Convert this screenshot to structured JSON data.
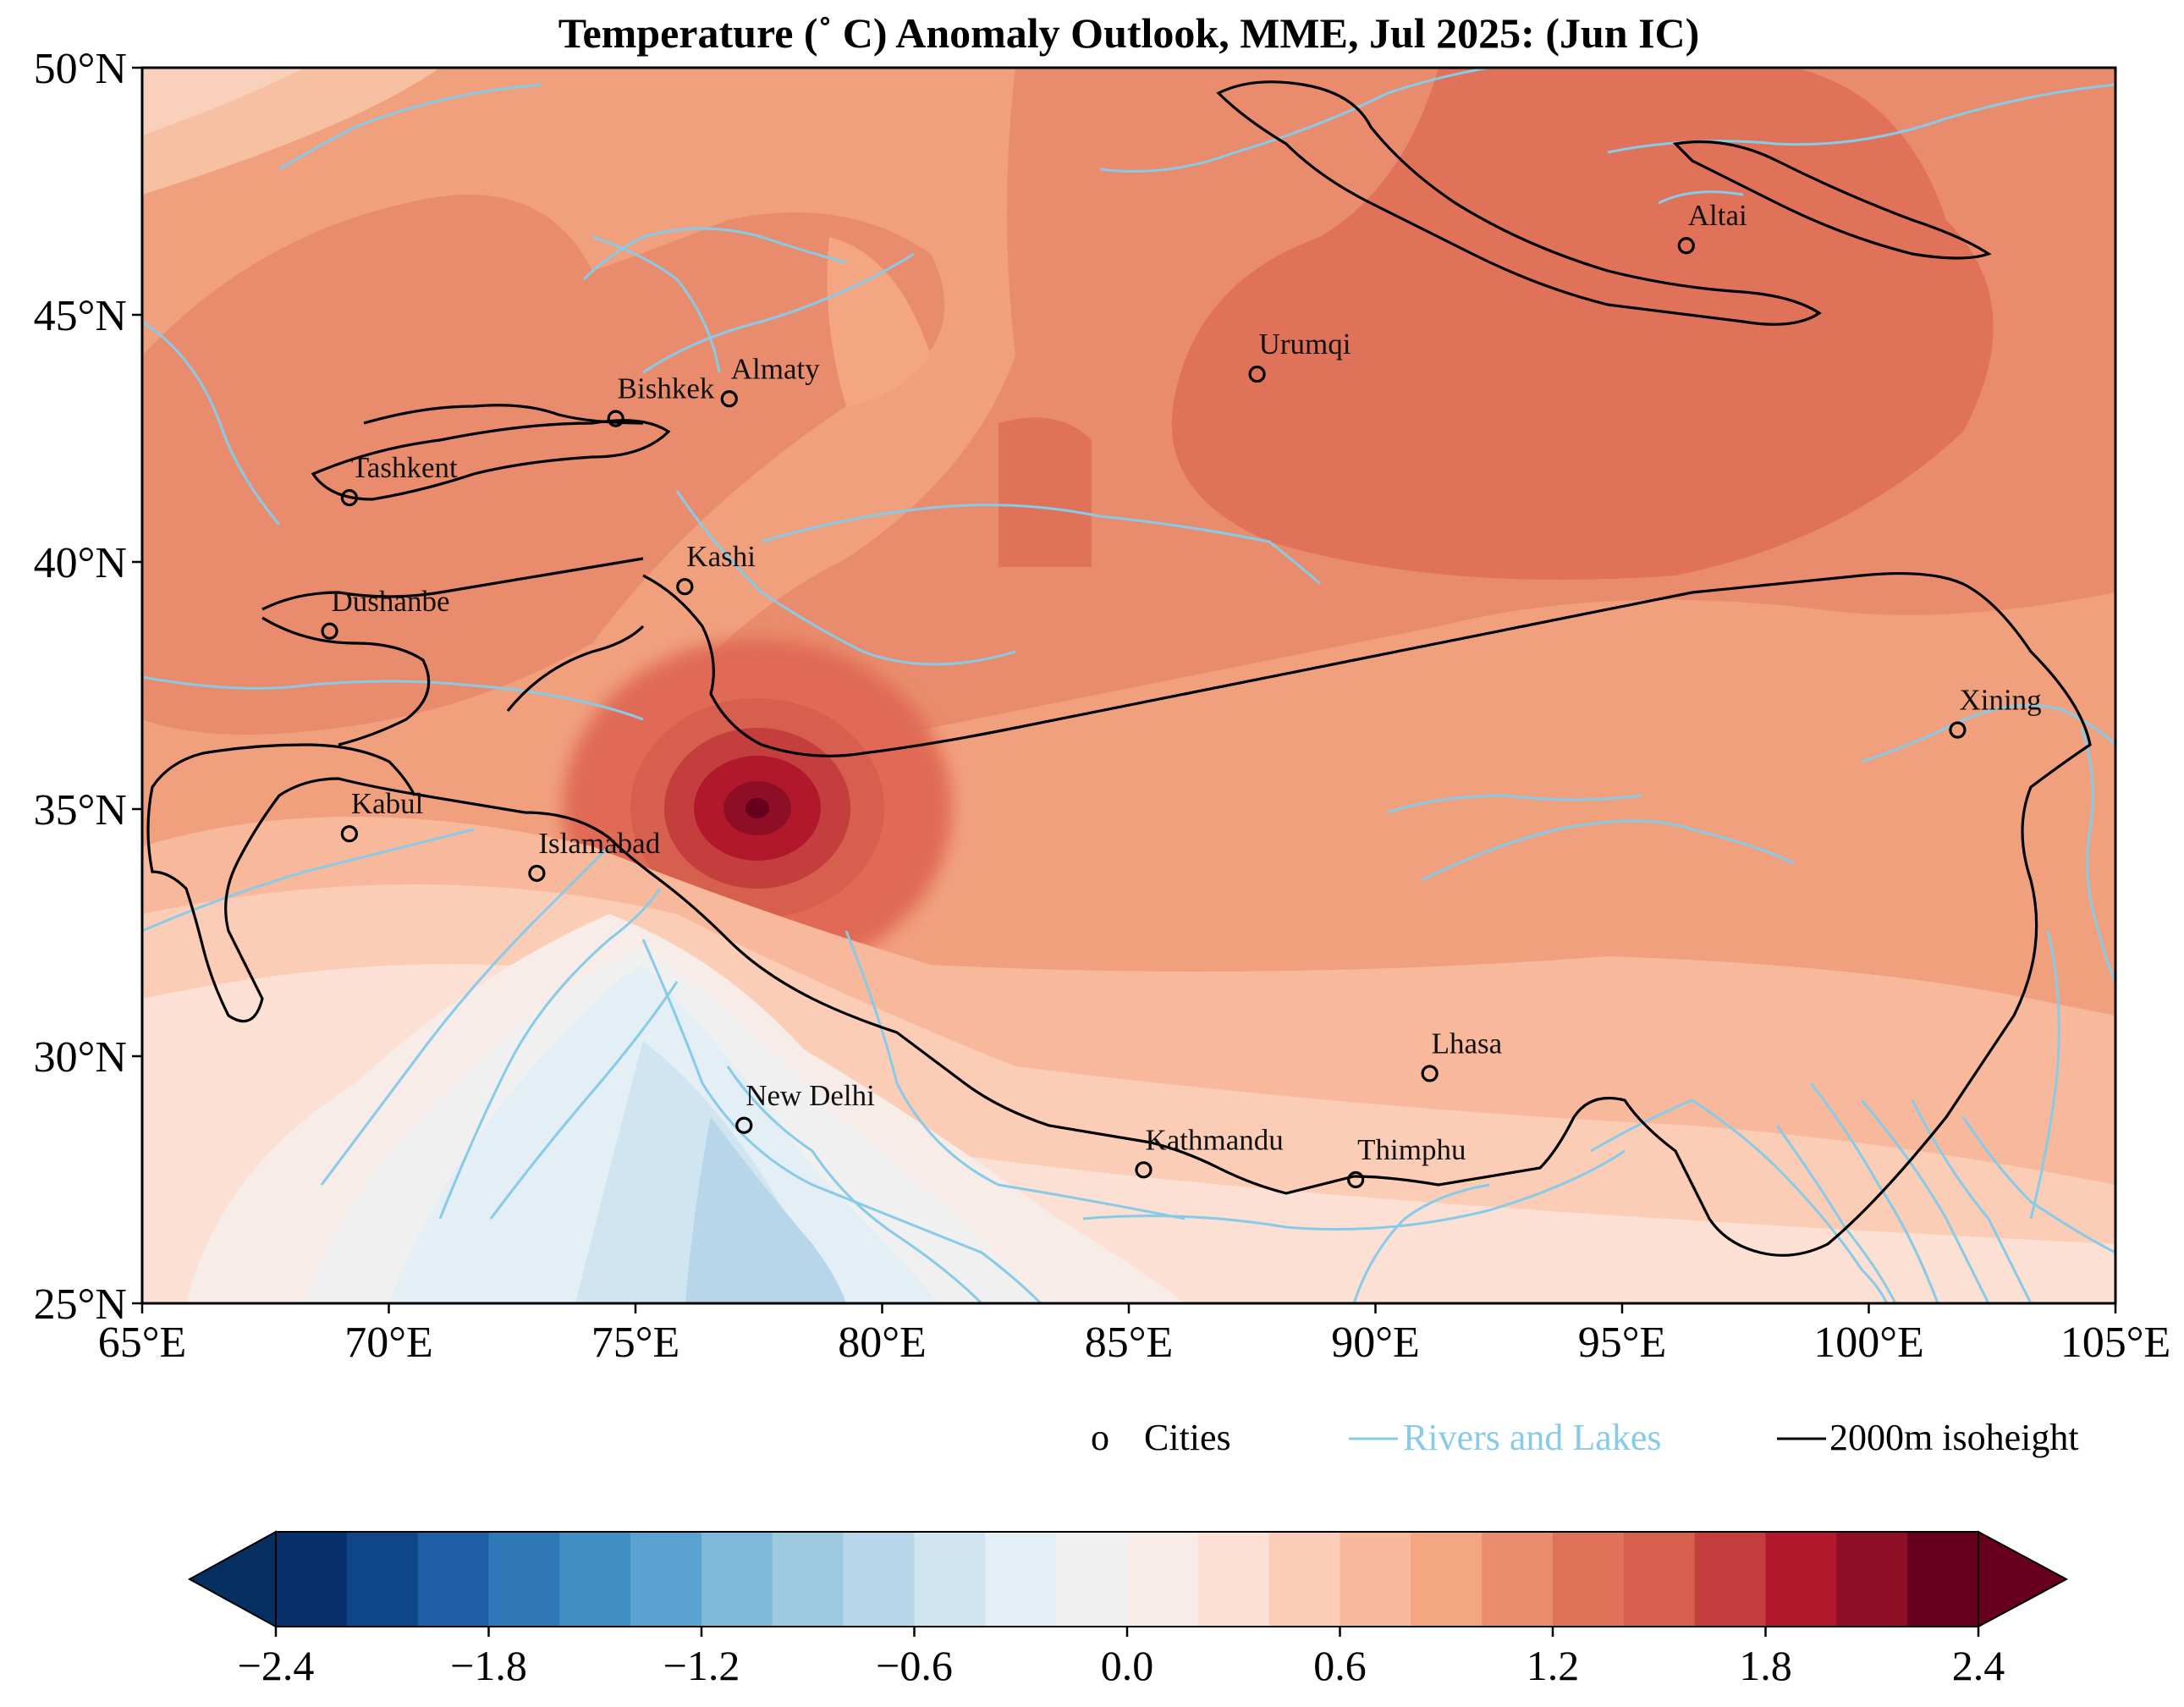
{
  "title": "Temperature (˚ C) Anomaly Outlook, MME, Jul  2025:  (Jun IC)",
  "map": {
    "lon_range": [
      65,
      105
    ],
    "lat_range": [
      25,
      50
    ],
    "x_ticks": [
      65,
      70,
      75,
      80,
      85,
      90,
      95,
      100,
      105
    ],
    "y_ticks": [
      25,
      30,
      35,
      40,
      45,
      50
    ],
    "x_tick_labels": [
      "65°E",
      "70°E",
      "75°E",
      "80°E",
      "85°E",
      "90°E",
      "95°E",
      "100°E",
      "105°E"
    ],
    "y_tick_labels": [
      "25°N",
      "30°N",
      "35°N",
      "40°N",
      "45°N",
      "50°N"
    ],
    "cities": [
      {
        "name": "Altai",
        "lon": 96.3,
        "lat": 46.4
      },
      {
        "name": "Urumqi",
        "lon": 87.6,
        "lat": 43.8
      },
      {
        "name": "Almaty",
        "lon": 76.9,
        "lat": 43.3
      },
      {
        "name": "Bishkek",
        "lon": 74.6,
        "lat": 42.9
      },
      {
        "name": "Tashkent",
        "lon": 69.2,
        "lat": 41.3
      },
      {
        "name": "Kashi",
        "lon": 76.0,
        "lat": 39.5
      },
      {
        "name": "Dushanbe",
        "lon": 68.8,
        "lat": 38.6
      },
      {
        "name": "Xining",
        "lon": 101.8,
        "lat": 36.6
      },
      {
        "name": "Kabul",
        "lon": 69.2,
        "lat": 34.5
      },
      {
        "name": "Islamabad",
        "lon": 73.0,
        "lat": 33.7
      },
      {
        "name": "Lhasa",
        "lon": 91.1,
        "lat": 29.65
      },
      {
        "name": "New Delhi",
        "lon": 77.2,
        "lat": 28.6
      },
      {
        "name": "Kathmandu",
        "lon": 85.3,
        "lat": 27.7
      },
      {
        "name": "Thimphu",
        "lon": 89.6,
        "lat": 27.5
      }
    ]
  },
  "legend": {
    "cities_marker": "o",
    "cities_label": "Cities",
    "rivers_label": "Rivers and Lakes",
    "isoheight_label": "2000m isoheight"
  },
  "colorbar": {
    "tick_labels": [
      "−2.4",
      "−1.8",
      "−1.2",
      "−0.6",
      "0.0",
      "0.6",
      "1.2",
      "1.8",
      "2.4"
    ],
    "colors": [
      "#08306b",
      "#0f4589",
      "#1f5fa8",
      "#2e78b7",
      "#3f8fc5",
      "#5aa2d0",
      "#7eb8da",
      "#9ecae1",
      "#b7d6ea",
      "#d1e5f0",
      "#e3eef5",
      "#f0f0f0",
      "#f7ece8",
      "#fbe0d3",
      "#fbcdb6",
      "#f8b89b",
      "#f4a582",
      "#e98c6d",
      "#df7258",
      "#d6604d",
      "#c43e3e",
      "#b2182b",
      "#8e0e26",
      "#67001f"
    ],
    "under_color": "#053061",
    "over_color": "#67001f"
  },
  "chart_data": {
    "type": "heatmap",
    "title": "Temperature (˚ C) Anomaly Outlook, MME, Jul  2025:  (Jun IC)",
    "xlabel": "",
    "ylabel": "",
    "xlim": [
      65,
      105
    ],
    "ylim": [
      25,
      50
    ],
    "levels": [
      -2.4,
      -2.2,
      -2.0,
      -1.8,
      -1.6,
      -1.4,
      -1.2,
      -1.0,
      -0.8,
      -0.6,
      -0.4,
      -0.2,
      0.0,
      0.2,
      0.4,
      0.6,
      0.8,
      1.0,
      1.2,
      1.4,
      1.6,
      1.8,
      2.0,
      2.2,
      2.4
    ],
    "regions": [
      {
        "name_hint": "northern half",
        "value": 0.9
      },
      {
        "name_hint": "Tarim / Dzungaria",
        "value": 1.1
      },
      {
        "name_hint": "Karakoram hotspot",
        "value": 2.2
      },
      {
        "name_hint": "Tibetan Plateau south",
        "value": 0.5
      },
      {
        "name_hint": "Indo-Gangetic plain",
        "value": -0.5
      }
    ]
  }
}
